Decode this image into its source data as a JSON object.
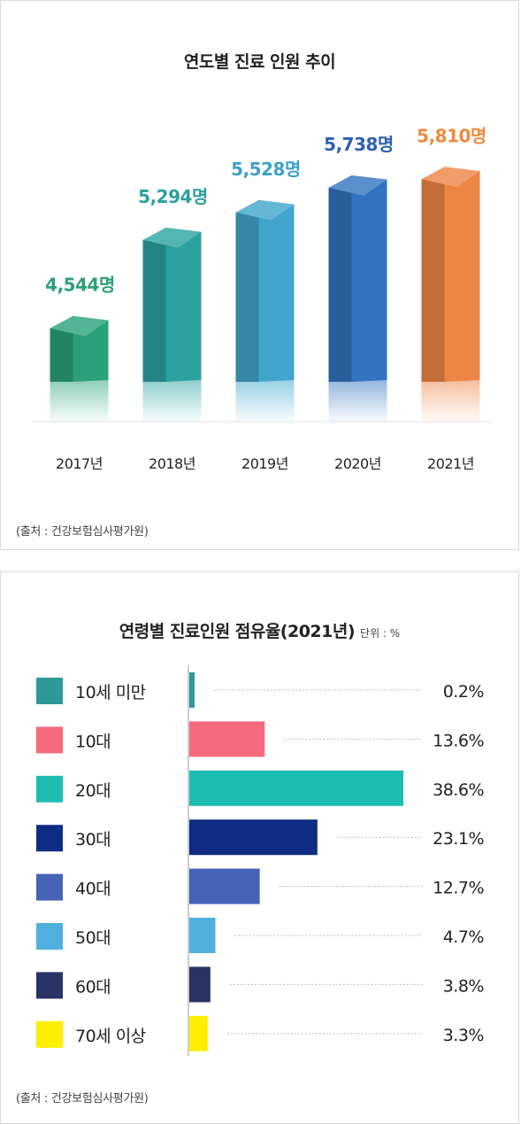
{
  "chart_data": [
    {
      "type": "bar",
      "title": "연도별 진료 인원 추이",
      "categories": [
        "2017년",
        "2018년",
        "2019년",
        "2020년",
        "2021년"
      ],
      "values": [
        4544,
        5294,
        5528,
        5738,
        5810
      ],
      "value_labels": [
        "4,544명",
        "5,294명",
        "5,528명",
        "5,738명",
        "5,810명"
      ],
      "colors": [
        "#2aa17a",
        "#2ba2a0",
        "#3fa5cc",
        "#3273c0",
        "#ee8545"
      ],
      "label_colors": [
        "#2a9f78",
        "#2a9f9c",
        "#3f9fc8",
        "#2e5fb0",
        "#ee8a3e"
      ],
      "source": "(출처 : 건강보험심사평가원)"
    },
    {
      "type": "bar",
      "orientation": "horizontal",
      "title": "연령별 진료인원 점유율(2021년)",
      "unit": "단위 : %",
      "categories": [
        "10세 미만",
        "10대",
        "20대",
        "30대",
        "40대",
        "50대",
        "60대",
        "70세 이상"
      ],
      "values": [
        0.2,
        13.6,
        38.6,
        23.1,
        12.7,
        4.7,
        3.8,
        3.3
      ],
      "value_labels": [
        "0.2%",
        "13.6%",
        "38.6%",
        "23.1%",
        "12.7%",
        "4.7%",
        "3.8%",
        "3.3%"
      ],
      "colors": [
        "#2e999a",
        "#f46a7c",
        "#1dbdb2",
        "#0f2c85",
        "#4663b8",
        "#4fb0df",
        "#283466",
        "#ffee00"
      ],
      "source": "(출처 : 건강보험심사평가원)"
    }
  ]
}
